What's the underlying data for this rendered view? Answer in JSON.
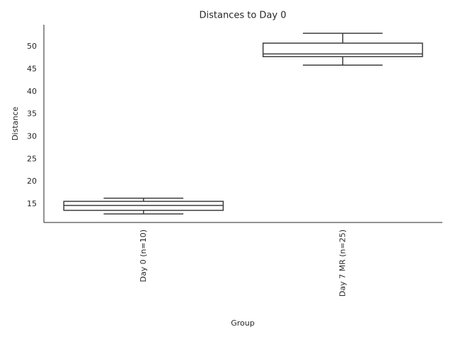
{
  "chart_data": {
    "type": "box",
    "title": "Distances to Day 0",
    "x_label": "Group",
    "y_label": "Distance",
    "categories": [
      "Day 0 (n=10)",
      "Day 7 MR (n=25)"
    ],
    "boxes": [
      {
        "min": 12.8,
        "q1": 13.6,
        "median": 14.7,
        "q3": 15.6,
        "max": 16.3
      },
      {
        "min": 45.9,
        "q1": 47.8,
        "median": 48.4,
        "q3": 50.8,
        "max": 53.0
      }
    ],
    "color": "#ffffff",
    "line_color": "#3d3d3d",
    "ylim": [
      10.9,
      54.9
    ],
    "yticks": [
      15,
      20,
      25,
      30,
      35,
      40,
      45,
      50
    ],
    "grid": false
  }
}
